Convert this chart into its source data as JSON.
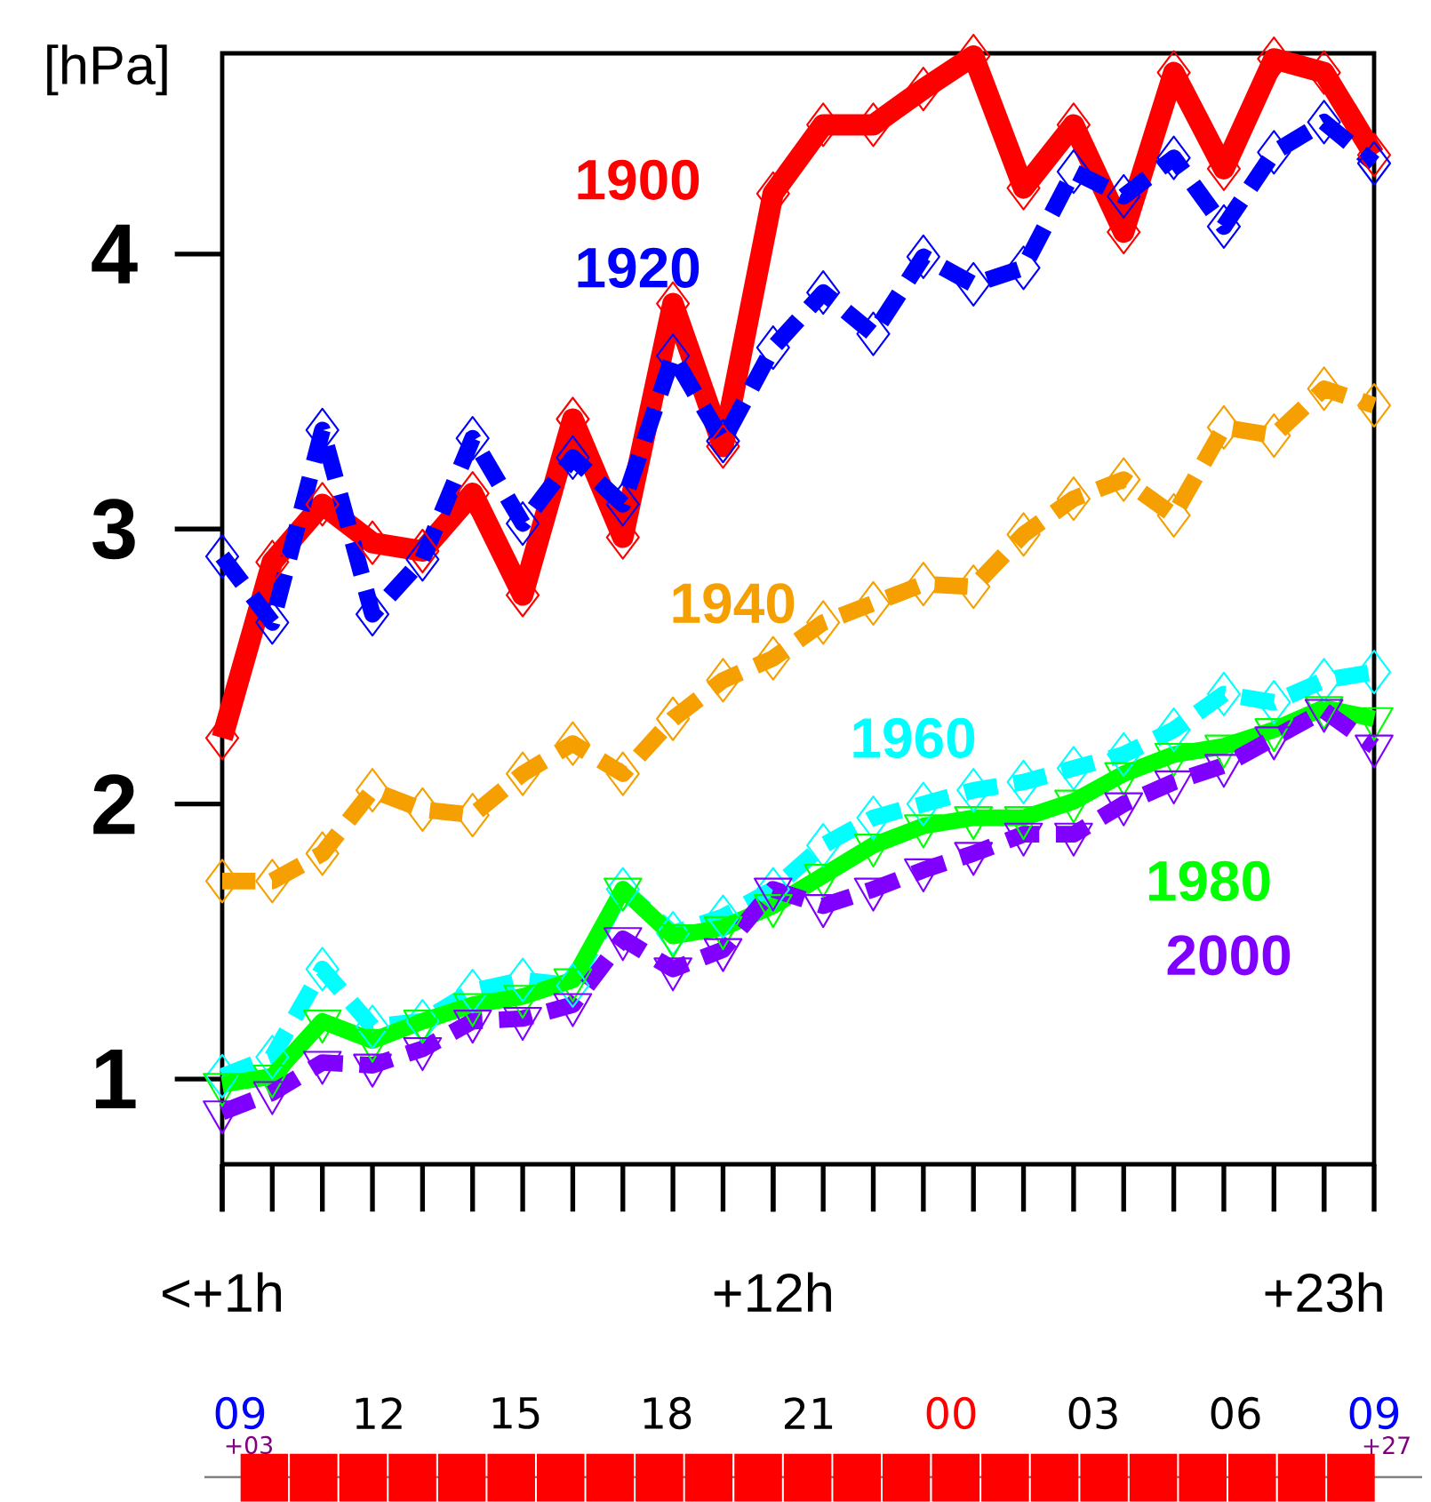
{
  "chart_data": {
    "type": "line",
    "ylabel": "[hPa]",
    "x": [
      1,
      2,
      3,
      4,
      5,
      6,
      7,
      8,
      9,
      10,
      11,
      12,
      13,
      14,
      15,
      16,
      17,
      18,
      19,
      20,
      21,
      22,
      23,
      24
    ],
    "xlim": [
      1,
      24
    ],
    "xticks": [
      {
        "value": 1,
        "label": "<+1h"
      },
      {
        "value": 12,
        "label": "+12h"
      },
      {
        "value": 23,
        "label": "+23h"
      }
    ],
    "ylim": [
      0.69,
      4.73
    ],
    "yticks": [
      1,
      2,
      3,
      4
    ],
    "grid": false,
    "series": [
      {
        "name": "1900",
        "color": "#ff0000",
        "line_style": "solid",
        "marker": "diamond",
        "values": [
          2.24,
          2.88,
          3.09,
          2.95,
          2.92,
          3.13,
          2.76,
          3.4,
          2.97,
          3.82,
          3.3,
          4.22,
          4.47,
          4.47,
          4.6,
          4.72,
          4.24,
          4.47,
          4.08,
          4.66,
          4.31,
          4.71,
          4.66,
          4.36
        ]
      },
      {
        "name": "1920",
        "color": "#0000ff",
        "line_style": "dashed",
        "marker": "diamond",
        "values": [
          2.9,
          2.66,
          3.36,
          2.69,
          2.89,
          3.33,
          3.02,
          3.26,
          3.09,
          3.63,
          3.32,
          3.66,
          3.86,
          3.71,
          3.99,
          3.89,
          3.95,
          4.3,
          4.21,
          4.35,
          4.1,
          4.37,
          4.48,
          4.33
        ]
      },
      {
        "name": "1940",
        "color": "#f5a000",
        "line_style": "dashed",
        "marker": "diamond",
        "values": [
          1.72,
          1.72,
          1.82,
          2.05,
          1.98,
          1.96,
          2.11,
          2.22,
          2.11,
          2.31,
          2.45,
          2.53,
          2.66,
          2.73,
          2.8,
          2.79,
          2.98,
          3.11,
          3.18,
          3.05,
          3.37,
          3.34,
          3.51,
          3.45
        ]
      },
      {
        "name": "1960",
        "color": "#00ffff",
        "line_style": "dashed",
        "marker": "diamond",
        "values": [
          1.01,
          1.08,
          1.4,
          1.19,
          1.21,
          1.32,
          1.36,
          1.34,
          1.69,
          1.53,
          1.59,
          1.69,
          1.85,
          1.95,
          2.0,
          2.05,
          2.08,
          2.13,
          2.18,
          2.27,
          2.4,
          2.37,
          2.45,
          2.48
        ]
      },
      {
        "name": "1980",
        "color": "#00ff00",
        "line_style": "solid",
        "marker": "triangle",
        "values": [
          0.98,
          1.01,
          1.21,
          1.14,
          1.21,
          1.27,
          1.3,
          1.36,
          1.69,
          1.52,
          1.55,
          1.63,
          1.74,
          1.85,
          1.92,
          1.95,
          1.95,
          2.01,
          2.11,
          2.18,
          2.21,
          2.27,
          2.35,
          2.31
        ]
      },
      {
        "name": "2000",
        "color": "#8000ff",
        "line_style": "dashed",
        "marker": "triangle",
        "values": [
          0.88,
          0.95,
          1.06,
          1.05,
          1.11,
          1.21,
          1.22,
          1.27,
          1.51,
          1.4,
          1.47,
          1.69,
          1.63,
          1.69,
          1.76,
          1.82,
          1.89,
          1.89,
          2.0,
          2.08,
          2.14,
          2.24,
          2.34,
          2.21
        ]
      }
    ],
    "annotations": [
      "09",
      "+03",
      "12",
      "15",
      "18",
      "21",
      "00",
      "03",
      "06",
      "09",
      "+27"
    ]
  }
}
